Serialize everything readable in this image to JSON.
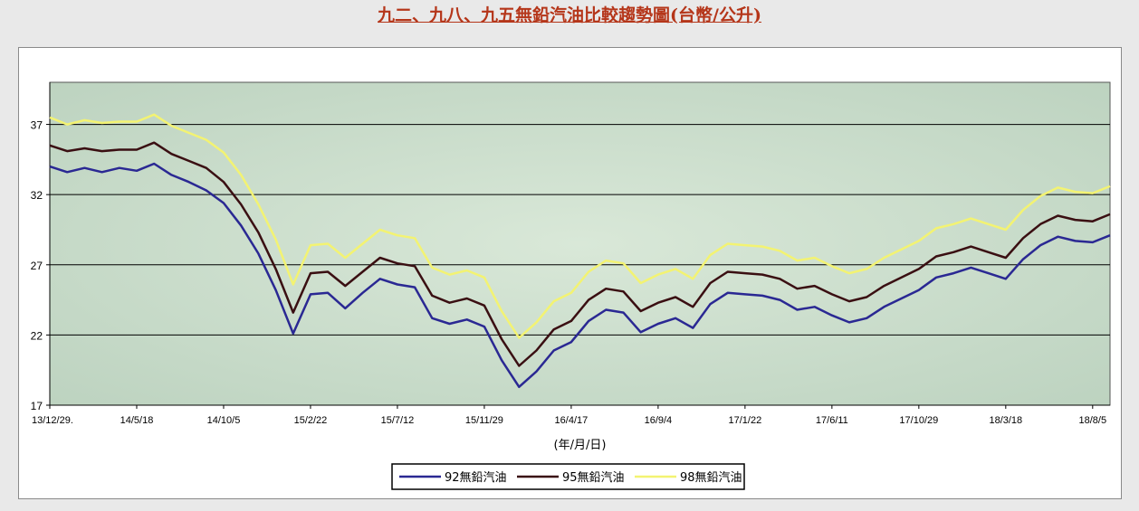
{
  "title": "九二、九八、九五無鉛汽油比較趨勢圖(台幣/公升)",
  "colors": {
    "plot_bg": "#bdd3c0",
    "grid": "#000000",
    "title": "#b5361a",
    "series_92": "#2a2893",
    "series_95": "#3a0f12",
    "series_98": "#f3f372"
  },
  "chart_data": {
    "type": "line",
    "xlabel": "(年/月/日)",
    "ylabel": "",
    "ylim": [
      17,
      40
    ],
    "yticks": [
      17,
      22,
      27,
      32,
      37
    ],
    "grid": "horizontal",
    "legend_position": "bottom",
    "xticks": [
      "13/12/29.",
      "14/5/18",
      "14/10/5",
      "15/2/22",
      "15/7/12",
      "15/11/29",
      "16/4/17",
      "16/9/4",
      "17/1/22",
      "17/6/11",
      "17/10/29",
      "18/3/18",
      "18/8/5"
    ],
    "x_points": [
      "13/12/29.",
      "14/1/26",
      "14/2/23",
      "14/3/23",
      "14/4/20",
      "14/5/18",
      "14/6/15",
      "14/7/13",
      "14/8/10",
      "14/9/7",
      "14/10/5",
      "14/11/2",
      "14/11/30",
      "14/12/28",
      "15/1/25",
      "15/2/22",
      "15/3/22",
      "15/4/19",
      "15/5/17",
      "15/6/14",
      "15/7/12",
      "15/8/9",
      "15/9/6",
      "15/10/4",
      "15/11/1",
      "15/11/29",
      "15/12/27",
      "16/1/24",
      "16/2/21",
      "16/3/20",
      "16/4/17",
      "16/5/15",
      "16/6/12",
      "16/7/10",
      "16/8/7",
      "16/9/4",
      "16/10/2",
      "16/10/30",
      "16/11/27",
      "16/12/25",
      "17/1/22",
      "17/2/19",
      "17/3/19",
      "17/4/16",
      "17/5/14",
      "17/6/11",
      "17/7/9",
      "17/8/6",
      "17/9/3",
      "17/10/1",
      "17/10/29",
      "17/11/26",
      "17/12/24",
      "18/1/21",
      "18/2/18",
      "18/3/18",
      "18/4/15",
      "18/5/13",
      "18/6/10",
      "18/7/8",
      "18/8/5",
      "18/9/2"
    ],
    "series": [
      {
        "name": "92無鉛汽油",
        "color": "#2a2893",
        "values": [
          34.0,
          33.6,
          33.9,
          33.6,
          33.9,
          33.7,
          34.2,
          33.4,
          32.9,
          32.3,
          31.4,
          29.8,
          27.8,
          25.2,
          22.1,
          24.9,
          25.0,
          23.9,
          25.0,
          26.0,
          25.6,
          25.4,
          23.2,
          22.8,
          23.1,
          22.6,
          20.2,
          18.3,
          19.4,
          20.9,
          21.5,
          23.0,
          23.8,
          23.6,
          22.2,
          22.8,
          23.2,
          22.5,
          24.2,
          25.0,
          24.9,
          24.8,
          24.5,
          23.8,
          24.0,
          23.4,
          22.9,
          23.2,
          24.0,
          24.6,
          25.2,
          26.1,
          26.4,
          26.8,
          26.4,
          26.0,
          27.4,
          28.4,
          29.0,
          28.7,
          28.6,
          29.1
        ]
      },
      {
        "name": "95無鉛汽油",
        "color": "#3a0f12",
        "values": [
          35.5,
          35.1,
          35.3,
          35.1,
          35.2,
          35.2,
          35.7,
          34.9,
          34.4,
          33.9,
          32.9,
          31.3,
          29.3,
          26.7,
          23.6,
          26.4,
          26.5,
          25.5,
          26.5,
          27.5,
          27.1,
          26.9,
          24.8,
          24.3,
          24.6,
          24.1,
          21.7,
          19.8,
          20.9,
          22.4,
          23.0,
          24.5,
          25.3,
          25.1,
          23.7,
          24.3,
          24.7,
          24.0,
          25.7,
          26.5,
          26.4,
          26.3,
          26.0,
          25.3,
          25.5,
          24.9,
          24.4,
          24.7,
          25.5,
          26.1,
          26.7,
          27.6,
          27.9,
          28.3,
          27.9,
          27.5,
          28.9,
          29.9,
          30.5,
          30.2,
          30.1,
          30.6
        ]
      },
      {
        "name": "98無鉛汽油",
        "color": "#f3f372",
        "values": [
          37.5,
          37.0,
          37.3,
          37.1,
          37.2,
          37.2,
          37.7,
          36.9,
          36.4,
          35.9,
          35.0,
          33.4,
          31.3,
          28.8,
          25.6,
          28.4,
          28.5,
          27.5,
          28.5,
          29.5,
          29.1,
          28.9,
          26.8,
          26.3,
          26.6,
          26.1,
          23.7,
          21.8,
          22.9,
          24.4,
          25.0,
          26.5,
          27.3,
          27.1,
          25.7,
          26.3,
          26.7,
          26.0,
          27.7,
          28.5,
          28.4,
          28.3,
          28.0,
          27.3,
          27.5,
          26.9,
          26.4,
          26.7,
          27.5,
          28.1,
          28.7,
          29.6,
          29.9,
          30.3,
          29.9,
          29.5,
          30.9,
          31.9,
          32.5,
          32.2,
          32.1,
          32.6
        ]
      }
    ]
  }
}
